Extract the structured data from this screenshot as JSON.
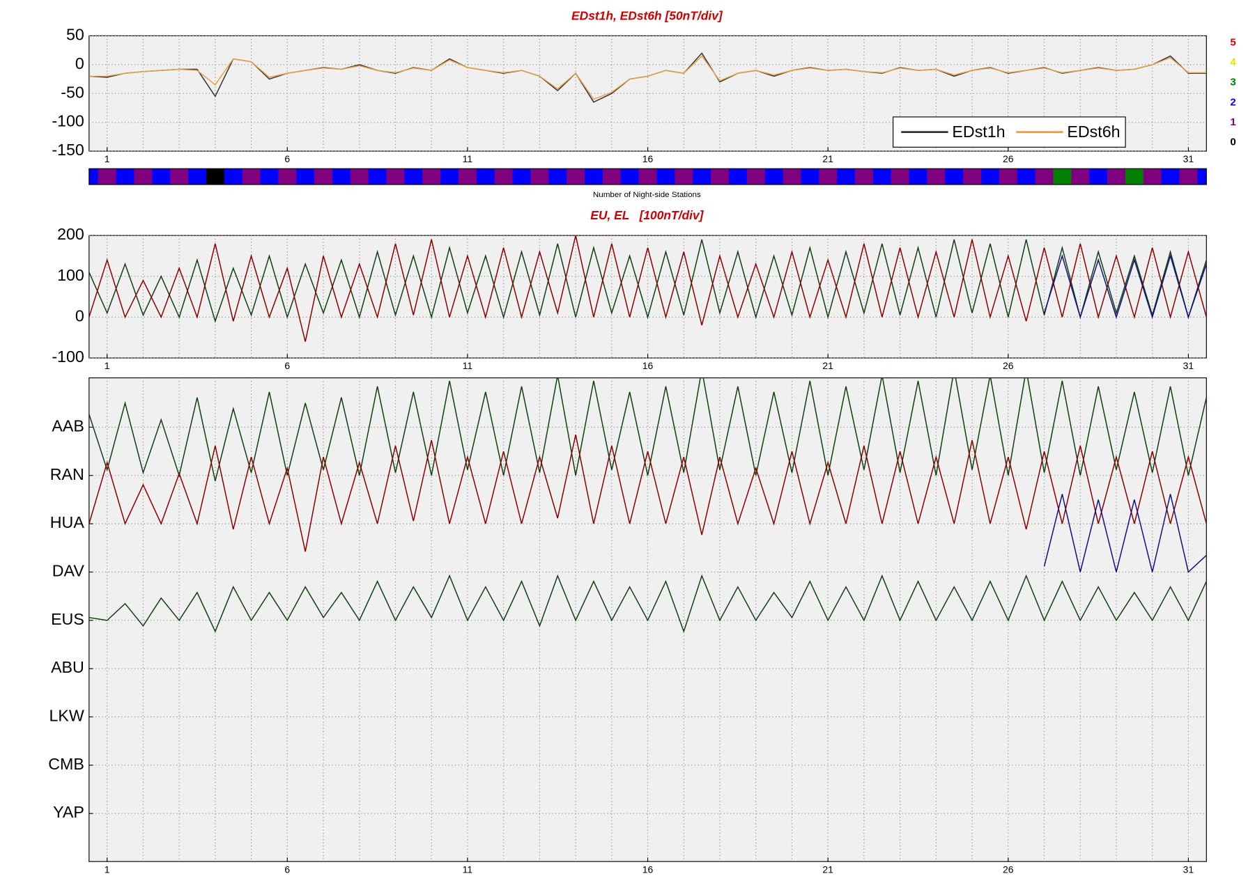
{
  "chart_data": [
    {
      "type": "line",
      "title": "EDst1h, EDst6h [50nT/div]",
      "x": [
        0.5,
        1,
        1.5,
        2,
        2.5,
        3,
        3.5,
        4,
        4.5,
        5,
        5.5,
        6,
        6.5,
        7,
        7.5,
        8,
        8.5,
        9,
        9.5,
        10,
        10.5,
        11,
        11.5,
        12,
        12.5,
        13,
        13.5,
        14,
        14.5,
        15,
        15.5,
        16,
        16.5,
        17,
        17.5,
        18,
        18.5,
        19,
        19.5,
        20,
        20.5,
        21,
        21.5,
        22,
        22.5,
        23,
        23.5,
        24,
        24.5,
        25,
        25.5,
        26,
        26.5,
        27,
        27.5,
        28,
        28.5,
        29,
        29.5,
        30,
        30.5,
        31,
        31.5
      ],
      "series": [
        {
          "name": "EDst1h",
          "color": "#333333",
          "values": [
            -20,
            -22,
            -15,
            -12,
            -10,
            -8,
            -8,
            -55,
            10,
            5,
            -25,
            -15,
            -10,
            -5,
            -8,
            0,
            -10,
            -15,
            -5,
            -10,
            10,
            -5,
            -10,
            -15,
            -10,
            -20,
            -45,
            -15,
            -65,
            -50,
            -25,
            -20,
            -10,
            -15,
            20,
            -30,
            -15,
            -10,
            -20,
            -10,
            -5,
            -10,
            -8,
            -12,
            -15,
            -5,
            -10,
            -8,
            -20,
            -10,
            -5,
            -15,
            -10,
            -5,
            -15,
            -10,
            -5,
            -10,
            -8,
            0,
            15,
            -15,
            -15
          ]
        },
        {
          "name": "EDst6h",
          "color": "#e8a040",
          "values": [
            -20,
            -20,
            -15,
            -12,
            -10,
            -8,
            -10,
            -35,
            10,
            5,
            -22,
            -15,
            -10,
            -6,
            -8,
            -2,
            -10,
            -14,
            -6,
            -10,
            8,
            -5,
            -10,
            -14,
            -10,
            -20,
            -42,
            -15,
            -60,
            -48,
            -25,
            -20,
            -10,
            -15,
            15,
            -28,
            -15,
            -10,
            -18,
            -10,
            -6,
            -10,
            -8,
            -12,
            -14,
            -6,
            -10,
            -8,
            -18,
            -10,
            -6,
            -14,
            -10,
            -6,
            -14,
            -10,
            -6,
            -10,
            -8,
            0,
            12,
            -14,
            -14
          ]
        }
      ],
      "xlim": [
        0.5,
        31.5
      ],
      "xticks": [
        1,
        6,
        11,
        16,
        21,
        26,
        31
      ],
      "ylim": [
        -150,
        50
      ],
      "yticks": [
        -150,
        -100,
        -50,
        0,
        50
      ],
      "grid": true,
      "legend": "lower right"
    },
    {
      "type": "strip",
      "xlabel": "Number of Night-side Stations",
      "x": [
        0.5,
        1,
        1.5,
        2,
        2.5,
        3,
        3.5,
        4,
        4.5,
        5,
        5.5,
        6,
        6.5,
        7,
        7.5,
        8,
        8.5,
        9,
        9.5,
        10,
        10.5,
        11,
        11.5,
        12,
        12.5,
        13,
        13.5,
        14,
        14.5,
        15,
        15.5,
        16,
        16.5,
        17,
        17.5,
        18,
        18.5,
        19,
        19.5,
        20,
        20.5,
        21,
        21.5,
        22,
        22.5,
        23,
        23.5,
        24,
        24.5,
        25,
        25.5,
        26,
        26.5,
        27,
        27.5,
        28,
        28.5,
        29,
        29.5,
        30,
        30.5,
        31,
        31.5
      ],
      "values": [
        2,
        1,
        2,
        1,
        2,
        1,
        2,
        0,
        2,
        1,
        2,
        1,
        2,
        1,
        2,
        1,
        2,
        1,
        2,
        1,
        2,
        1,
        2,
        1,
        2,
        1,
        2,
        1,
        2,
        1,
        2,
        1,
        2,
        1,
        2,
        1,
        2,
        1,
        2,
        1,
        2,
        1,
        2,
        1,
        2,
        1,
        2,
        1,
        2,
        1,
        2,
        1,
        2,
        1,
        3,
        1,
        2,
        1,
        3,
        1,
        2,
        1,
        2
      ],
      "xlim": [
        0.5,
        31.5
      ],
      "levels": [
        5,
        4,
        3,
        2,
        1,
        0
      ],
      "level_colors": [
        "#e00000",
        "#f0e000",
        "#008000",
        "#0000ff",
        "#800080",
        "#000000"
      ]
    },
    {
      "type": "line",
      "title": "EU, EL   [100nT/div]",
      "x": [
        0.5,
        1,
        1.5,
        2,
        2.5,
        3,
        3.5,
        4,
        4.5,
        5,
        5.5,
        6,
        6.5,
        7,
        7.5,
        8,
        8.5,
        9,
        9.5,
        10,
        10.5,
        11,
        11.5,
        12,
        12.5,
        13,
        13.5,
        14,
        14.5,
        15,
        15.5,
        16,
        16.5,
        17,
        17.5,
        18,
        18.5,
        19,
        19.5,
        20,
        20.5,
        21,
        21.5,
        22,
        22.5,
        23,
        23.5,
        24,
        24.5,
        25,
        25.5,
        26,
        26.5,
        27,
        27.5,
        28,
        28.5,
        29,
        29.5,
        30,
        30.5,
        31,
        31.5
      ],
      "series": [
        {
          "color": "#104010",
          "values": [
            110,
            10,
            130,
            5,
            100,
            0,
            140,
            -10,
            120,
            5,
            150,
            0,
            130,
            10,
            140,
            0,
            160,
            5,
            150,
            0,
            170,
            10,
            150,
            0,
            160,
            5,
            180,
            0,
            170,
            10,
            150,
            0,
            160,
            5,
            190,
            10,
            160,
            0,
            150,
            5,
            170,
            0,
            160,
            10,
            180,
            5,
            170,
            0,
            190,
            10,
            180,
            0,
            190,
            5,
            170,
            0,
            160,
            10,
            150,
            5,
            160,
            0,
            140
          ]
        },
        {
          "color": "#8b0000",
          "values": [
            0,
            140,
            0,
            90,
            0,
            120,
            0,
            180,
            -10,
            150,
            0,
            120,
            -60,
            150,
            0,
            130,
            0,
            180,
            5,
            190,
            0,
            150,
            0,
            170,
            0,
            160,
            10,
            200,
            0,
            180,
            0,
            170,
            0,
            160,
            -20,
            150,
            0,
            130,
            0,
            160,
            0,
            140,
            0,
            180,
            0,
            170,
            0,
            160,
            0,
            190,
            0,
            150,
            -10,
            170,
            0,
            180,
            0,
            150,
            0,
            170,
            0,
            160,
            0
          ]
        },
        {
          "color": "#101080",
          "x": [
            27,
            27.5,
            28,
            28.5,
            29,
            29.5,
            30,
            30.5,
            31,
            31.5
          ],
          "values": [
            10,
            150,
            0,
            140,
            0,
            140,
            0,
            150,
            0,
            130
          ]
        }
      ],
      "xlim": [
        0.5,
        31.5
      ],
      "xticks": [
        1,
        6,
        11,
        16,
        21,
        26,
        31
      ],
      "ylim": [
        -100,
        200
      ],
      "yticks": [
        -100,
        0,
        100,
        200
      ],
      "grid": true
    },
    {
      "type": "stack",
      "categories": [
        "AAB",
        "RAN",
        "HUA",
        "DAV",
        "EUS",
        "ABU",
        "LKW",
        "CMB",
        "YAP"
      ],
      "x": [
        0.5,
        1,
        1.5,
        2,
        2.5,
        3,
        3.5,
        4,
        4.5,
        5,
        5.5,
        6,
        6.5,
        7,
        7.5,
        8,
        8.5,
        9,
        9.5,
        10,
        10.5,
        11,
        11.5,
        12,
        12.5,
        13,
        13.5,
        14,
        14.5,
        15,
        15.5,
        16,
        16.5,
        17,
        17.5,
        18,
        18.5,
        19,
        19.5,
        20,
        20.5,
        21,
        21.5,
        22,
        22.5,
        23,
        23.5,
        24,
        24.5,
        25,
        25.5,
        26,
        26.5,
        27,
        27.5,
        28,
        28.5,
        29,
        29.5,
        30,
        30.5,
        31,
        31.5
      ],
      "series": [
        {
          "color": "#104010",
          "baseline": 1,
          "values": [
            110,
            10,
            130,
            5,
            100,
            0,
            140,
            -10,
            120,
            5,
            150,
            0,
            130,
            10,
            140,
            0,
            160,
            5,
            150,
            0,
            170,
            10,
            150,
            0,
            160,
            5,
            180,
            0,
            170,
            10,
            150,
            0,
            160,
            5,
            190,
            10,
            160,
            0,
            150,
            5,
            170,
            0,
            160,
            10,
            180,
            5,
            170,
            0,
            190,
            10,
            180,
            0,
            190,
            5,
            170,
            0,
            160,
            10,
            150,
            5,
            160,
            0,
            140
          ]
        },
        {
          "color": "#8b0000",
          "baseline": 2,
          "values": [
            0,
            110,
            0,
            70,
            0,
            90,
            0,
            140,
            -10,
            120,
            0,
            100,
            -50,
            120,
            0,
            110,
            0,
            140,
            5,
            150,
            0,
            120,
            0,
            130,
            0,
            120,
            10,
            160,
            0,
            140,
            0,
            130,
            0,
            120,
            -20,
            120,
            0,
            100,
            0,
            130,
            0,
            110,
            0,
            140,
            0,
            130,
            0,
            120,
            0,
            150,
            0,
            120,
            -10,
            130,
            0,
            140,
            0,
            120,
            0,
            130,
            0,
            120,
            0
          ]
        },
        {
          "color": "#101080",
          "baseline": 3,
          "x": [
            27,
            27.5,
            28,
            28.5,
            29,
            29.5,
            30,
            30.5,
            31,
            31.5
          ],
          "values": [
            10,
            140,
            0,
            130,
            0,
            130,
            0,
            140,
            0,
            30
          ]
        },
        {
          "color": "#104010",
          "baseline": 4,
          "values": [
            5,
            0,
            30,
            -10,
            40,
            0,
            50,
            -20,
            60,
            0,
            50,
            0,
            60,
            5,
            50,
            0,
            70,
            0,
            60,
            5,
            80,
            0,
            60,
            0,
            70,
            -10,
            80,
            0,
            70,
            0,
            60,
            0,
            70,
            -20,
            80,
            0,
            60,
            0,
            50,
            5,
            70,
            0,
            60,
            0,
            80,
            0,
            70,
            0,
            60,
            0,
            70,
            0,
            80,
            0,
            70,
            0,
            60,
            0,
            50,
            0,
            60,
            0,
            70
          ]
        }
      ],
      "xlim": [
        0.5,
        31.5
      ],
      "xticks": [
        1,
        6,
        11,
        16,
        21,
        26,
        31
      ],
      "grid": true
    }
  ]
}
